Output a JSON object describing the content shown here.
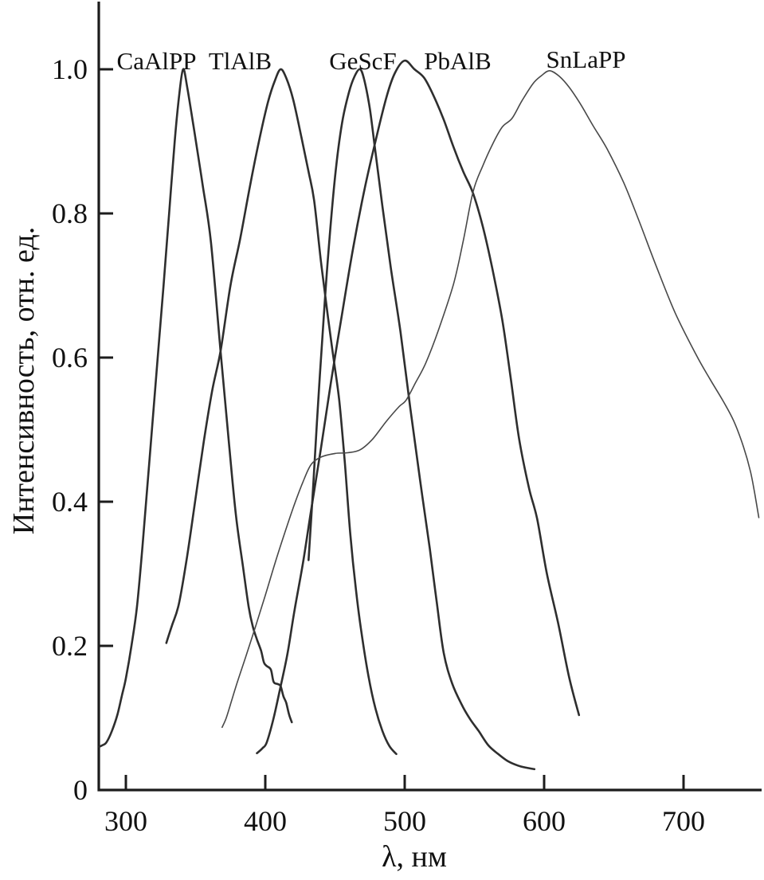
{
  "figure": {
    "background": "#ffffff",
    "axis_color": "#1c1c1c",
    "curve_color": "#2e2e2e",
    "thin_curve_color": "#484848"
  },
  "chart_data": {
    "type": "line",
    "title": "",
    "xlabel": "λ, нм",
    "ylabel": "Интенсивность, отн. ед.",
    "xlim": [
      279,
      758
    ],
    "ylim": [
      0,
      1.1
    ],
    "grid": false,
    "legend": "inline-labels-above-peaks",
    "x_ticks": [
      300,
      400,
      500,
      600,
      700
    ],
    "x_tick_labels": [
      "300",
      "400",
      "500",
      "600",
      "700"
    ],
    "y_ticks": [
      1.0,
      0.8,
      0.6,
      0.4,
      0.2,
      0
    ],
    "y_tick_labels": [
      "1.0",
      "0.8",
      "0.6",
      "0.4",
      "0.2",
      "0"
    ],
    "series": [
      {
        "name": "CaAlPP",
        "peak_nm": 341,
        "peak_intensity": 1.0,
        "stroke_width": 2.6,
        "color": "#2e2e2e",
        "points": [
          [
            281,
            0.06
          ],
          [
            283,
            0.062
          ],
          [
            286,
            0.066
          ],
          [
            290,
            0.082
          ],
          [
            294,
            0.105
          ],
          [
            297,
            0.13
          ],
          [
            300,
            0.155
          ],
          [
            304,
            0.2
          ],
          [
            308,
            0.255
          ],
          [
            312,
            0.34
          ],
          [
            317,
            0.46
          ],
          [
            322,
            0.58
          ],
          [
            327,
            0.7
          ],
          [
            331,
            0.8
          ],
          [
            335,
            0.9
          ],
          [
            338,
            0.96
          ],
          [
            341,
            1.0
          ],
          [
            344,
            0.975
          ],
          [
            349,
            0.915
          ],
          [
            355,
            0.84
          ],
          [
            361,
            0.76
          ],
          [
            368,
            0.607
          ],
          [
            374,
            0.48
          ],
          [
            379,
            0.38
          ],
          [
            384,
            0.31
          ],
          [
            388,
            0.255
          ],
          [
            391,
            0.227
          ],
          [
            394,
            0.209
          ],
          [
            397,
            0.193
          ],
          [
            399,
            0.177
          ],
          [
            401,
            0.172
          ],
          [
            404,
            0.167
          ],
          [
            406,
            0.15
          ],
          [
            409,
            0.147
          ],
          [
            411,
            0.144
          ],
          [
            413,
            0.13
          ],
          [
            415,
            0.121
          ],
          [
            417,
            0.105
          ],
          [
            419,
            0.094
          ]
        ]
      },
      {
        "name": "TlAlB",
        "peak_nm": 411,
        "peak_intensity": 1.0,
        "stroke_width": 2.6,
        "color": "#2e2e2e",
        "points": [
          [
            329,
            0.204
          ],
          [
            333,
            0.228
          ],
          [
            338,
            0.258
          ],
          [
            344,
            0.325
          ],
          [
            350,
            0.405
          ],
          [
            356,
            0.485
          ],
          [
            362,
            0.555
          ],
          [
            368,
            0.61
          ],
          [
            375,
            0.7
          ],
          [
            382,
            0.765
          ],
          [
            389,
            0.838
          ],
          [
            396,
            0.905
          ],
          [
            402,
            0.955
          ],
          [
            407,
            0.985
          ],
          [
            411,
            1.0
          ],
          [
            415,
            0.988
          ],
          [
            420,
            0.958
          ],
          [
            426,
            0.905
          ],
          [
            431,
            0.858
          ],
          [
            435,
            0.818
          ],
          [
            440,
            0.732
          ],
          [
            445,
            0.655
          ],
          [
            449,
            0.598
          ],
          [
            453,
            0.541
          ],
          [
            457,
            0.455
          ],
          [
            461,
            0.354
          ],
          [
            465,
            0.278
          ],
          [
            469,
            0.218
          ],
          [
            474,
            0.158
          ],
          [
            479,
            0.113
          ],
          [
            484,
            0.082
          ],
          [
            489,
            0.061
          ],
          [
            494,
            0.05
          ]
        ]
      },
      {
        "name": "GeScF",
        "peak_nm": 468,
        "peak_intensity": 1.0,
        "stroke_width": 2.6,
        "color": "#2e2e2e",
        "points": [
          [
            431,
            0.319
          ],
          [
            434,
            0.41
          ],
          [
            437,
            0.51
          ],
          [
            441,
            0.63
          ],
          [
            445,
            0.74
          ],
          [
            450,
            0.85
          ],
          [
            455,
            0.925
          ],
          [
            460,
            0.968
          ],
          [
            464,
            0.99
          ],
          [
            468,
            1.0
          ],
          [
            471,
            0.985
          ],
          [
            475,
            0.945
          ],
          [
            479,
            0.885
          ],
          [
            484,
            0.81
          ],
          [
            490,
            0.725
          ],
          [
            497,
            0.635
          ],
          [
            504,
            0.53
          ],
          [
            511,
            0.43
          ],
          [
            518,
            0.335
          ],
          [
            523,
            0.26
          ],
          [
            528,
            0.19
          ],
          [
            534,
            0.148
          ],
          [
            541,
            0.118
          ],
          [
            547,
            0.098
          ],
          [
            553,
            0.082
          ],
          [
            560,
            0.062
          ],
          [
            567,
            0.05
          ],
          [
            574,
            0.04
          ],
          [
            581,
            0.034
          ],
          [
            587,
            0.031
          ],
          [
            593,
            0.029
          ]
        ]
      },
      {
        "name": "PbAlB",
        "peak_nm": 500,
        "peak_intensity": 1.01,
        "stroke_width": 2.6,
        "color": "#2e2e2e",
        "points": [
          [
            394,
            0.051
          ],
          [
            398,
            0.058
          ],
          [
            401,
            0.066
          ],
          [
            406,
            0.1
          ],
          [
            411,
            0.144
          ],
          [
            416,
            0.19
          ],
          [
            421,
            0.25
          ],
          [
            427,
            0.315
          ],
          [
            433,
            0.39
          ],
          [
            440,
            0.475
          ],
          [
            447,
            0.565
          ],
          [
            455,
            0.66
          ],
          [
            463,
            0.752
          ],
          [
            471,
            0.832
          ],
          [
            479,
            0.9
          ],
          [
            487,
            0.962
          ],
          [
            493,
            0.995
          ],
          [
            500,
            1.012
          ],
          [
            507,
            1.0
          ],
          [
            514,
            0.988
          ],
          [
            521,
            0.962
          ],
          [
            528,
            0.93
          ],
          [
            535,
            0.892
          ],
          [
            542,
            0.858
          ],
          [
            549,
            0.828
          ],
          [
            556,
            0.782
          ],
          [
            563,
            0.722
          ],
          [
            570,
            0.652
          ],
          [
            576,
            0.572
          ],
          [
            582,
            0.488
          ],
          [
            589,
            0.42
          ],
          [
            595,
            0.376
          ],
          [
            602,
            0.3
          ],
          [
            610,
            0.232
          ],
          [
            618,
            0.156
          ],
          [
            625,
            0.104
          ]
        ]
      },
      {
        "name": "SnLaPP",
        "peak_nm": 604,
        "peak_intensity": 1.0,
        "stroke_width": 1.6,
        "color": "#484848",
        "points": [
          [
            369,
            0.087
          ],
          [
            372,
            0.1
          ],
          [
            376,
            0.125
          ],
          [
            380,
            0.15
          ],
          [
            386,
            0.185
          ],
          [
            393,
            0.227
          ],
          [
            400,
            0.27
          ],
          [
            407,
            0.315
          ],
          [
            414,
            0.357
          ],
          [
            421,
            0.397
          ],
          [
            428,
            0.432
          ],
          [
            433,
            0.452
          ],
          [
            440,
            0.462
          ],
          [
            450,
            0.467
          ],
          [
            459,
            0.468
          ],
          [
            468,
            0.472
          ],
          [
            477,
            0.487
          ],
          [
            487,
            0.512
          ],
          [
            496,
            0.532
          ],
          [
            501,
            0.541
          ],
          [
            508,
            0.566
          ],
          [
            515,
            0.592
          ],
          [
            524,
            0.637
          ],
          [
            535,
            0.702
          ],
          [
            542,
            0.762
          ],
          [
            549,
            0.83
          ],
          [
            556,
            0.866
          ],
          [
            563,
            0.896
          ],
          [
            570,
            0.92
          ],
          [
            577,
            0.932
          ],
          [
            584,
            0.956
          ],
          [
            592,
            0.98
          ],
          [
            598,
            0.991
          ],
          [
            604,
            0.998
          ],
          [
            611,
            0.99
          ],
          [
            618,
            0.975
          ],
          [
            626,
            0.952
          ],
          [
            635,
            0.922
          ],
          [
            645,
            0.89
          ],
          [
            657,
            0.843
          ],
          [
            668,
            0.79
          ],
          [
            680,
            0.729
          ],
          [
            694,
            0.662
          ],
          [
            709,
            0.604
          ],
          [
            719,
            0.57
          ],
          [
            728,
            0.541
          ],
          [
            736,
            0.512
          ],
          [
            743,
            0.476
          ],
          [
            748,
            0.442
          ],
          [
            751,
            0.412
          ],
          [
            754,
            0.378
          ]
        ]
      }
    ],
    "curve_labels": [
      {
        "text": "CaAlPP",
        "nm": 322,
        "intensity": 1.0
      },
      {
        "text": "TlAlB",
        "nm": 382,
        "intensity": 1.0
      },
      {
        "text": "GeScF",
        "nm": 470,
        "intensity": 1.0
      },
      {
        "text": "PbAlB",
        "nm": 538,
        "intensity": 1.0
      },
      {
        "text": "SnLaPP",
        "nm": 630,
        "intensity": 1.002
      }
    ]
  }
}
